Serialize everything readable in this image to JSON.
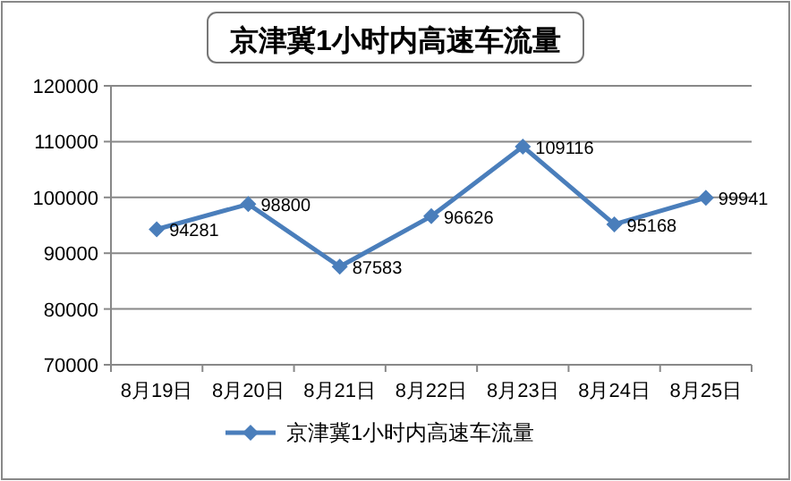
{
  "chart_data": {
    "type": "line",
    "title": "京津冀1小时内高速车流量",
    "categories": [
      "8月19日",
      "8月20日",
      "8月21日",
      "8月22日",
      "8月23日",
      "8月24日",
      "8月25日"
    ],
    "series": [
      {
        "name": "京津冀1小时内高速车流量",
        "color": "#4a7ebb",
        "values": [
          94281,
          98800,
          87583,
          96626,
          109116,
          95168,
          99941
        ]
      }
    ],
    "ylim": [
      70000,
      120000
    ],
    "yticks": [
      70000,
      80000,
      90000,
      100000,
      110000,
      120000
    ],
    "grid": "y",
    "legend": "bottom",
    "marker": "diamond",
    "line_style": "solid",
    "data_labels": true
  }
}
